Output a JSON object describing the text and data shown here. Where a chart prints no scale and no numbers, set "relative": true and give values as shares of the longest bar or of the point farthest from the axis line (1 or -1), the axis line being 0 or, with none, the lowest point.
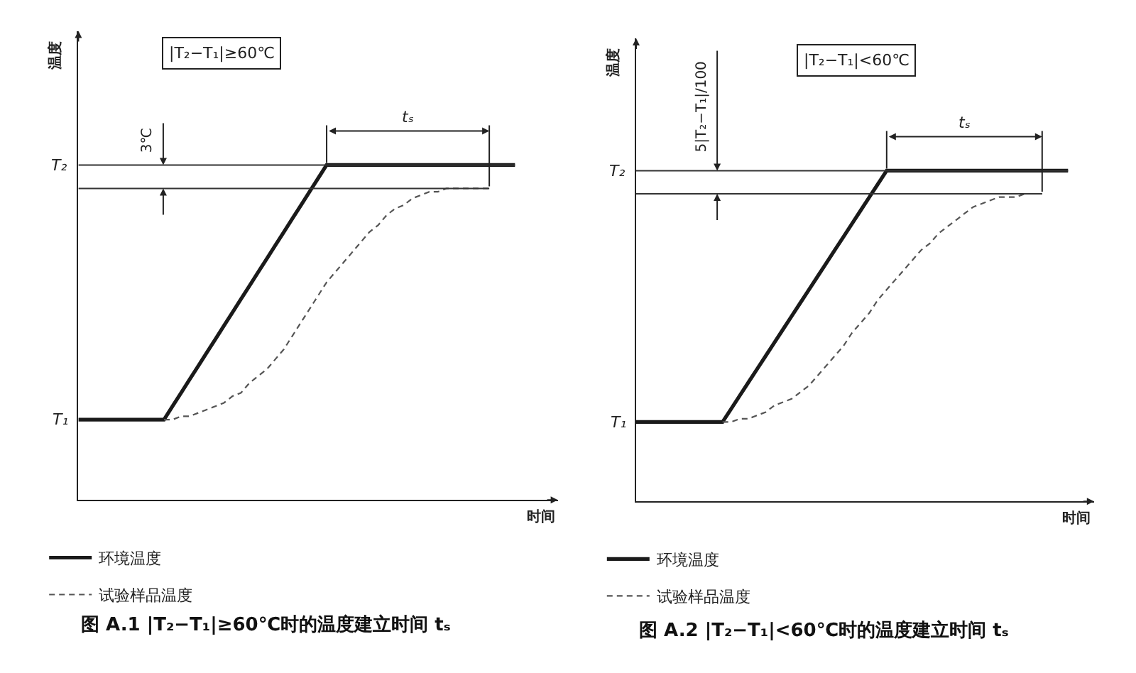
{
  "chart_data": [
    {
      "type": "line",
      "title": "图 A.1 |T₂−T₁|≥60℃时的温度建立时间 tₛ",
      "subtitle": "|T₂−T₁|≥60℃",
      "xlabel": "时间",
      "ylabel": "温度",
      "relative": true,
      "legend": "bottom left",
      "categories": [
        null,
        null,
        null,
        null,
        null,
        null,
        null,
        null,
        null,
        null,
        null,
        null,
        null,
        null,
        null,
        null,
        null,
        null,
        null,
        null,
        null,
        null,
        null,
        null,
        null,
        null,
        null,
        null,
        null,
        null,
        null,
        null,
        null,
        null,
        null,
        null,
        null,
        null,
        null,
        null,
        null,
        null,
        null,
        null,
        null,
        null,
        null,
        null,
        null,
        null,
        null,
        null,
        null,
        null,
        null,
        null,
        null
      ],
      "series": [
        {
          "name": "环境温度",
          "color": "#1a1a1a",
          "line_style": "solid",
          "values": [
            0.24,
            0.24,
            0.24,
            0.24,
            0.24,
            0.24,
            0.24,
            0.24,
            0.24,
            0.24,
            0.24,
            0.28,
            0.32,
            0.36,
            0.4,
            0.44,
            0.48,
            0.52,
            0.56,
            0.6,
            0.64,
            0.68,
            0.72,
            0.76,
            0.8,
            0.84,
            0.88,
            0.92,
            0.96,
            1,
            1,
            1,
            1,
            1,
            1,
            1,
            1,
            1,
            1,
            1,
            1,
            1,
            1,
            1,
            1,
            1,
            1,
            1,
            1,
            1,
            1,
            1,
            null,
            null,
            null,
            null,
            null
          ]
        },
        {
          "name": "试验样品温度",
          "color": "#555555",
          "line_style": "dashed",
          "values": [
            null,
            null,
            null,
            null,
            null,
            null,
            null,
            null,
            null,
            null,
            0.24,
            0.24,
            0.25,
            0.25,
            0.26,
            0.27,
            0.28,
            0.29,
            0.31,
            0.32,
            0.35,
            0.37,
            0.39,
            0.42,
            0.45,
            0.49,
            0.53,
            0.57,
            0.61,
            0.65,
            0.68,
            0.71,
            0.74,
            0.77,
            0.8,
            0.82,
            0.85,
            0.87,
            0.88,
            0.9,
            0.91,
            0.92,
            0.92,
            0.93,
            0.93,
            0.93,
            0.93,
            0.93,
            0.93,
            null,
            null,
            null,
            null,
            null,
            null,
            null,
            null
          ]
        }
      ],
      "ref_lines": [
        {
          "axis": "y",
          "value": 1,
          "label": "T₂",
          "color": "#333333"
        },
        {
          "axis": "y",
          "value": 0.93,
          "color": "#333333"
        }
      ],
      "annotations": [
        "T₁",
        "3℃",
        "tₛ"
      ]
    },
    {
      "type": "line",
      "title": "图 A.2 |T₂−T₁|<60℃时的温度建立时间 tₛ",
      "subtitle": "|T₂−T₁|<60℃",
      "xlabel": "时间",
      "ylabel": "温度",
      "relative": true,
      "legend": "bottom left",
      "categories": [
        null,
        null,
        null,
        null,
        null,
        null,
        null,
        null,
        null,
        null,
        null,
        null,
        null,
        null,
        null,
        null,
        null,
        null,
        null,
        null,
        null,
        null,
        null,
        null,
        null,
        null,
        null,
        null,
        null,
        null,
        null,
        null,
        null,
        null,
        null,
        null,
        null,
        null,
        null,
        null,
        null,
        null,
        null,
        null,
        null,
        null,
        null,
        null,
        null,
        null,
        null,
        null,
        null,
        null
      ],
      "series": [
        {
          "name": "环境温度",
          "color": "#1a1a1a",
          "line_style": "solid",
          "values": [
            0.24,
            0.24,
            0.24,
            0.24,
            0.24,
            0.24,
            0.24,
            0.24,
            0.24,
            0.24,
            0.24,
            0.28,
            0.32,
            0.36,
            0.4,
            0.44,
            0.48,
            0.52,
            0.56,
            0.6,
            0.64,
            0.68,
            0.72,
            0.76,
            0.8,
            0.84,
            0.88,
            0.92,
            0.96,
            1,
            1,
            1,
            1,
            1,
            1,
            1,
            1,
            1,
            1,
            1,
            1,
            1,
            1,
            1,
            1,
            1,
            1,
            1,
            1,
            1,
            1,
            null,
            null,
            null
          ]
        },
        {
          "name": "试验样品温度",
          "color": "#555555",
          "line_style": "dashed",
          "values": [
            null,
            null,
            null,
            null,
            null,
            null,
            null,
            null,
            null,
            null,
            0.24,
            0.24,
            0.25,
            0.25,
            0.26,
            0.27,
            0.29,
            0.3,
            0.31,
            0.33,
            0.35,
            0.38,
            0.41,
            0.44,
            0.47,
            0.51,
            0.54,
            0.57,
            0.61,
            0.64,
            0.67,
            0.7,
            0.73,
            0.76,
            0.78,
            0.81,
            0.83,
            0.85,
            0.87,
            0.89,
            0.9,
            0.91,
            0.92,
            0.92,
            0.92,
            0.93,
            0.93,
            0.93,
            null,
            null,
            null,
            null,
            null,
            null
          ]
        }
      ],
      "ref_lines": [
        {
          "axis": "y",
          "value": 1,
          "label": "T₂",
          "color": "#333333"
        },
        {
          "axis": "y",
          "value": 0.93,
          "color": "#333333"
        }
      ],
      "annotations": [
        "T₁",
        "5|T₂−T₁|/100",
        "tₛ"
      ]
    }
  ]
}
